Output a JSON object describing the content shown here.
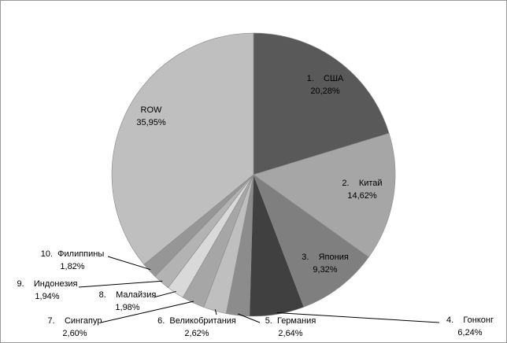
{
  "chart_data": {
    "type": "pie",
    "categories": [
      "1.    США",
      "2.    Китай",
      "3.    Япония",
      "4.    Гонконг",
      "5.  Германия",
      "6.  Великобритания",
      "7.    Сингапур",
      "8.    Малайзия",
      "9.    Индонезия",
      "10.  Филиппины",
      "ROW"
    ],
    "values": [
      20.28,
      14.62,
      9.32,
      6.24,
      2.64,
      2.62,
      2.6,
      1.98,
      1.94,
      1.82,
      35.95
    ],
    "value_labels": [
      "20,28%",
      "14,62%",
      "9,32%",
      "6,24%",
      "2,64%",
      "2,62%",
      "2,60%",
      "1,98%",
      "1,94%",
      "1,82%",
      "35,95%"
    ],
    "colors": [
      "#595959",
      "#a6a6a6",
      "#7f7f7f",
      "#404040",
      "#8c8c8c",
      "#bfbfbf",
      "#a6a6a6",
      "#d9d9d9",
      "#b3b3b3",
      "#969696",
      "#bfbfbf"
    ]
  }
}
